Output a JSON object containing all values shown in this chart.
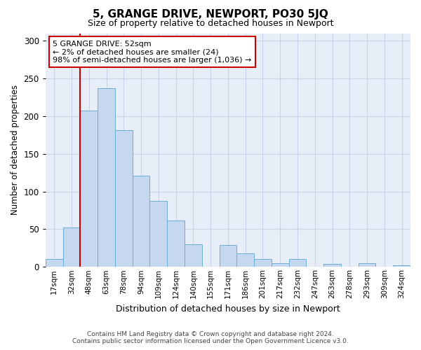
{
  "title": "5, GRANGE DRIVE, NEWPORT, PO30 5JQ",
  "subtitle": "Size of property relative to detached houses in Newport",
  "xlabel": "Distribution of detached houses by size in Newport",
  "ylabel": "Number of detached properties",
  "categories": [
    "17sqm",
    "32sqm",
    "48sqm",
    "63sqm",
    "78sqm",
    "94sqm",
    "109sqm",
    "124sqm",
    "140sqm",
    "155sqm",
    "171sqm",
    "186sqm",
    "201sqm",
    "217sqm",
    "232sqm",
    "247sqm",
    "263sqm",
    "278sqm",
    "293sqm",
    "309sqm",
    "324sqm"
  ],
  "values": [
    10,
    52,
    207,
    237,
    181,
    121,
    88,
    62,
    30,
    0,
    29,
    18,
    10,
    5,
    10,
    0,
    4,
    0,
    5,
    0,
    2
  ],
  "bar_color": "#c5d8f0",
  "bar_edge_color": "#6baed6",
  "vline_x_index": 2,
  "vline_color": "#cc0000",
  "annotation_text_line1": "5 GRANGE DRIVE: 52sqm",
  "annotation_text_line2": "← 2% of detached houses are smaller (24)",
  "annotation_text_line3": "98% of semi-detached houses are larger (1,036) →",
  "annotation_box_color": "#ffffff",
  "annotation_box_edge_color": "#cc0000",
  "ylim": [
    0,
    310
  ],
  "background_color": "#ffffff",
  "plot_bg_color": "#e8eef8",
  "grid_color": "#c8d4e8",
  "footer_line1": "Contains HM Land Registry data © Crown copyright and database right 2024.",
  "footer_line2": "Contains public sector information licensed under the Open Government Licence v3.0."
}
